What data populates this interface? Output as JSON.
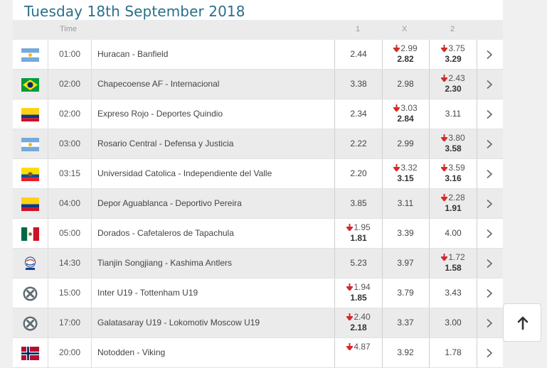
{
  "date_title": "Tuesday 18th September 2018",
  "columns": {
    "time": "Time",
    "home": "1",
    "draw": "X",
    "away": "2"
  },
  "matches": [
    {
      "flag": "argentina-flag-icon",
      "time": "01:00",
      "name": "Huracan - Banfield",
      "o1": {
        "new": "2.44"
      },
      "ox": {
        "old": "2.99",
        "new": "2.82"
      },
      "o2": {
        "old": "3.75",
        "new": "3.29"
      }
    },
    {
      "flag": "brazil-flag-icon",
      "time": "02:00",
      "name": "Chapecoense AF - Internacional",
      "o1": {
        "new": "3.38"
      },
      "ox": {
        "new": "2.98"
      },
      "o2": {
        "old": "2.43",
        "new": "2.30"
      }
    },
    {
      "flag": "colombia-flag-icon",
      "time": "02:00",
      "name": "Expreso Rojo - Deportes Quindio",
      "o1": {
        "new": "2.34"
      },
      "ox": {
        "old": "3.03",
        "new": "2.84"
      },
      "o2": {
        "new": "3.11"
      }
    },
    {
      "flag": "argentina-flag-icon",
      "time": "03:00",
      "name": "Rosario Central - Defensa y Justicia",
      "o1": {
        "new": "2.22"
      },
      "ox": {
        "new": "2.99"
      },
      "o2": {
        "old": "3.80",
        "new": "3.58"
      }
    },
    {
      "flag": "ecuador-flag-icon",
      "time": "03:15",
      "name": "Universidad Catolica - Independiente del Valle",
      "o1": {
        "new": "2.20"
      },
      "ox": {
        "old": "3.32",
        "new": "3.15"
      },
      "o2": {
        "old": "3.59",
        "new": "3.16"
      }
    },
    {
      "flag": "colombia-flag-icon",
      "time": "04:00",
      "name": "Depor Aguablanca - Deportivo Pereira",
      "o1": {
        "new": "3.85"
      },
      "ox": {
        "new": "3.11"
      },
      "o2": {
        "old": "2.28",
        "new": "1.91"
      }
    },
    {
      "flag": "mexico-flag-icon",
      "time": "05:00",
      "name": "Dorados - Cafetaleros de Tapachula",
      "o1": {
        "old": "1.95",
        "new": "1.81"
      },
      "ox": {
        "new": "3.39"
      },
      "o2": {
        "new": "4.00"
      }
    },
    {
      "flag": "champions-league-icon",
      "time": "14:30",
      "name": "Tianjin Songjiang - Kashima Antlers",
      "o1": {
        "new": "5.23"
      },
      "ox": {
        "new": "3.97"
      },
      "o2": {
        "old": "1.72",
        "new": "1.58"
      }
    },
    {
      "flag": "international-icon",
      "time": "15:00",
      "name": "Inter U19 - Tottenham U19",
      "o1": {
        "old": "1.94",
        "new": "1.85"
      },
      "ox": {
        "new": "3.79"
      },
      "o2": {
        "new": "3.43"
      }
    },
    {
      "flag": "international-icon",
      "time": "17:00",
      "name": "Galatasaray U19 - Lokomotiv Moscow U19",
      "o1": {
        "old": "2.40",
        "new": "2.18"
      },
      "ox": {
        "new": "3.37"
      },
      "o2": {
        "new": "3.00"
      }
    },
    {
      "flag": "norway-flag-icon",
      "time": "20:00",
      "name": "Notodden - Viking",
      "o1": {
        "old": "4.87",
        "new": ""
      },
      "ox": {
        "new": "3.92"
      },
      "o2": {
        "new": "1.78"
      }
    }
  ],
  "colors": {
    "title": "#2a6f8a",
    "arrow": "#d32a2a",
    "row_alt": "#ebebeb"
  }
}
